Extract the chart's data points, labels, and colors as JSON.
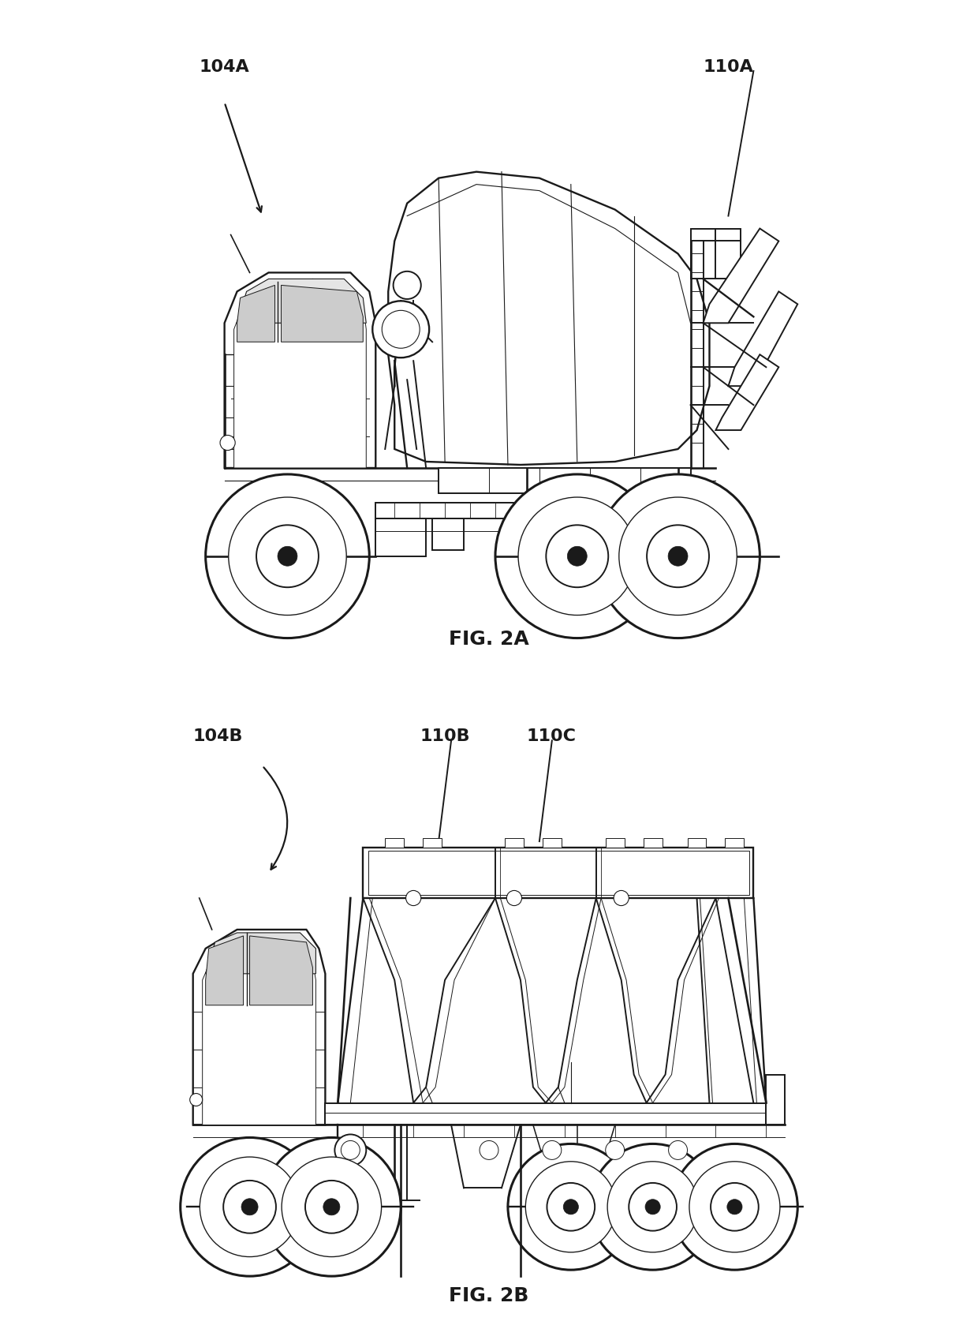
{
  "background_color": "#ffffff",
  "line_color": "#1a1a1a",
  "fig_width": 12.4,
  "fig_height": 16.99,
  "fig2a_label": "FIG. 2A",
  "fig2b_label": "FIG. 2B",
  "label_104A": "104A",
  "label_110A": "110A",
  "label_104B": "104B",
  "label_110B": "110B",
  "label_110C": "110C",
  "label_fontsize": 16,
  "fig_label_fontsize": 18
}
